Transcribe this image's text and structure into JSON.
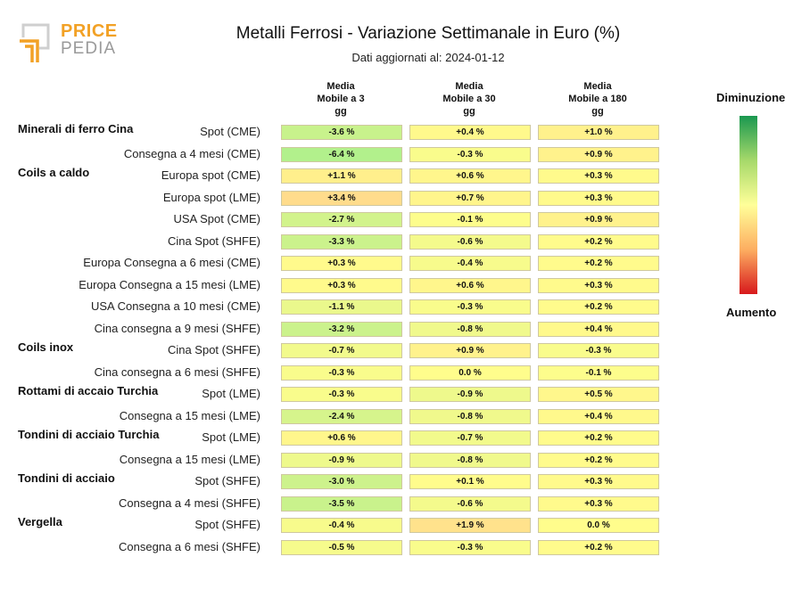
{
  "logo": {
    "word1": "PRICE",
    "word2": "PEDIA",
    "icon": "pricepedia-logo-icon"
  },
  "header": {
    "title": "Metalli Ferrosi - Variazione Settimanale in Euro (%)",
    "subtitle": "Dati aggiornati al: 2024-01-12"
  },
  "columns": [
    {
      "line1": "Media",
      "line2": "Mobile a 3",
      "line3": "gg"
    },
    {
      "line1": "Media",
      "line2": "Mobile a 30",
      "line3": "gg"
    },
    {
      "line1": "Media",
      "line2": "Mobile a 180",
      "line3": "gg"
    }
  ],
  "legend": {
    "top": "Diminuzione",
    "bottom": "Aumento",
    "colors": [
      "#1a9850",
      "#a6d96a",
      "#ffff99",
      "#fdae61",
      "#d7191c"
    ]
  },
  "chart_data": {
    "type": "table",
    "title": "Metalli Ferrosi - Variazione Settimanale in Euro (%)",
    "columns": [
      "Media Mobile a 3 gg",
      "Media Mobile a 30 gg",
      "Media Mobile a 180 gg"
    ],
    "unit": "%",
    "rows": [
      {
        "group": "Minerali di ferro Cina",
        "label": "Spot (CME)",
        "values": [
          -3.6,
          0.4,
          1.0
        ],
        "texts": [
          "-3.6 %",
          "+0.4 %",
          "+1.0 %"
        ]
      },
      {
        "group": "",
        "label": "Consegna a 4 mesi (CME)",
        "values": [
          -6.4,
          -0.3,
          0.9
        ],
        "texts": [
          "-6.4 %",
          "-0.3 %",
          "+0.9 %"
        ]
      },
      {
        "group": "Coils a caldo",
        "label": "Europa spot (CME)",
        "values": [
          1.1,
          0.6,
          0.3
        ],
        "texts": [
          "+1.1 %",
          "+0.6 %",
          "+0.3 %"
        ]
      },
      {
        "group": "",
        "label": "Europa spot (LME)",
        "values": [
          3.4,
          0.7,
          0.3
        ],
        "texts": [
          "+3.4 %",
          "+0.7 %",
          "+0.3 %"
        ]
      },
      {
        "group": "",
        "label": "USA Spot (CME)",
        "values": [
          -2.7,
          -0.1,
          0.9
        ],
        "texts": [
          "-2.7 %",
          "-0.1 %",
          "+0.9 %"
        ]
      },
      {
        "group": "",
        "label": "Cina Spot (SHFE)",
        "values": [
          -3.3,
          -0.6,
          0.2
        ],
        "texts": [
          "-3.3 %",
          "-0.6 %",
          "+0.2 %"
        ]
      },
      {
        "group": "",
        "label": "Europa Consegna a 6 mesi (CME)",
        "values": [
          0.3,
          -0.4,
          0.2
        ],
        "texts": [
          "+0.3 %",
          "-0.4 %",
          "+0.2 %"
        ]
      },
      {
        "group": "",
        "label": "Europa Consegna a 15 mesi (LME)",
        "values": [
          0.3,
          0.6,
          0.3
        ],
        "texts": [
          "+0.3 %",
          "+0.6 %",
          "+0.3 %"
        ]
      },
      {
        "group": "",
        "label": "USA Consegna a 10 mesi (CME)",
        "values": [
          -1.1,
          -0.3,
          0.2
        ],
        "texts": [
          "-1.1 %",
          "-0.3 %",
          "+0.2 %"
        ]
      },
      {
        "group": "",
        "label": "Cina consegna a 9 mesi (SHFE)",
        "values": [
          -3.2,
          -0.8,
          0.4
        ],
        "texts": [
          "-3.2 %",
          "-0.8 %",
          "+0.4 %"
        ]
      },
      {
        "group": "Coils inox",
        "label": "Cina Spot (SHFE)",
        "values": [
          -0.7,
          0.9,
          -0.3
        ],
        "texts": [
          "-0.7 %",
          "+0.9 %",
          "-0.3 %"
        ]
      },
      {
        "group": "",
        "label": "Cina consegna a 6 mesi (SHFE)",
        "values": [
          -0.3,
          0.0,
          -0.1
        ],
        "texts": [
          "-0.3 %",
          "0.0 %",
          "-0.1 %"
        ]
      },
      {
        "group": "Rottami di accaio Turchia",
        "label": "Spot (LME)",
        "values": [
          -0.3,
          -0.9,
          0.5
        ],
        "texts": [
          "-0.3 %",
          "-0.9 %",
          "+0.5 %"
        ]
      },
      {
        "group": "",
        "label": "Consegna a 15 mesi (LME)",
        "values": [
          -2.4,
          -0.8,
          0.4
        ],
        "texts": [
          "-2.4 %",
          "-0.8 %",
          "+0.4 %"
        ]
      },
      {
        "group": "Tondini di acciaio Turchia",
        "label": "Spot (LME)",
        "values": [
          0.6,
          -0.7,
          0.2
        ],
        "texts": [
          "+0.6 %",
          "-0.7 %",
          "+0.2 %"
        ]
      },
      {
        "group": "",
        "label": "Consegna a 15 mesi (LME)",
        "values": [
          -0.9,
          -0.8,
          0.2
        ],
        "texts": [
          "-0.9 %",
          "-0.8 %",
          "+0.2 %"
        ]
      },
      {
        "group": "Tondini di acciaio",
        "label": "Spot (SHFE)",
        "values": [
          -3.0,
          0.1,
          0.3
        ],
        "texts": [
          "-3.0 %",
          "+0.1 %",
          "+0.3 %"
        ]
      },
      {
        "group": "",
        "label": "Consegna a 4 mesi (SHFE)",
        "values": [
          -3.5,
          -0.6,
          0.3
        ],
        "texts": [
          "-3.5 %",
          "-0.6 %",
          "+0.3 %"
        ]
      },
      {
        "group": "Vergella",
        "label": "Spot (SHFE)",
        "values": [
          -0.4,
          1.9,
          0.0
        ],
        "texts": [
          "-0.4 %",
          "+1.9 %",
          "0.0 %"
        ]
      },
      {
        "group": "",
        "label": "Consegna a 6 mesi (SHFE)",
        "values": [
          -0.5,
          -0.3,
          0.2
        ],
        "texts": [
          "-0.5 %",
          "-0.3 %",
          "+0.2 %"
        ]
      }
    ]
  }
}
